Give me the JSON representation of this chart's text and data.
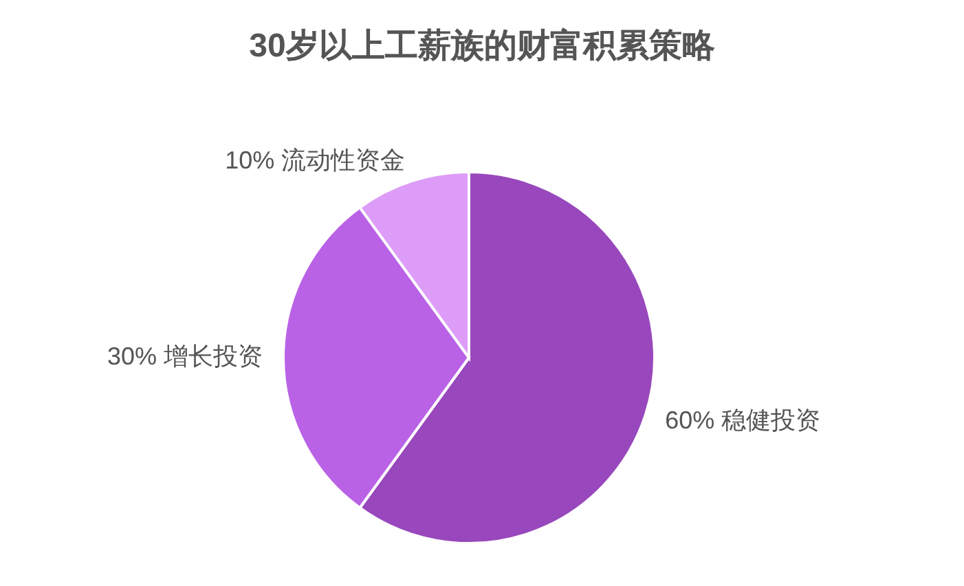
{
  "chart_data": {
    "type": "pie",
    "title": "30岁以上工薪族的财富积累策略",
    "categories": [
      "稳健投资",
      "增长投资",
      "流动性资金"
    ],
    "values": [
      60,
      30,
      10
    ],
    "value_labels": [
      "60%",
      "30%",
      "10%"
    ],
    "colors": [
      "#9848bc",
      "#b962e6",
      "#dc9cf7"
    ],
    "legend": false
  }
}
